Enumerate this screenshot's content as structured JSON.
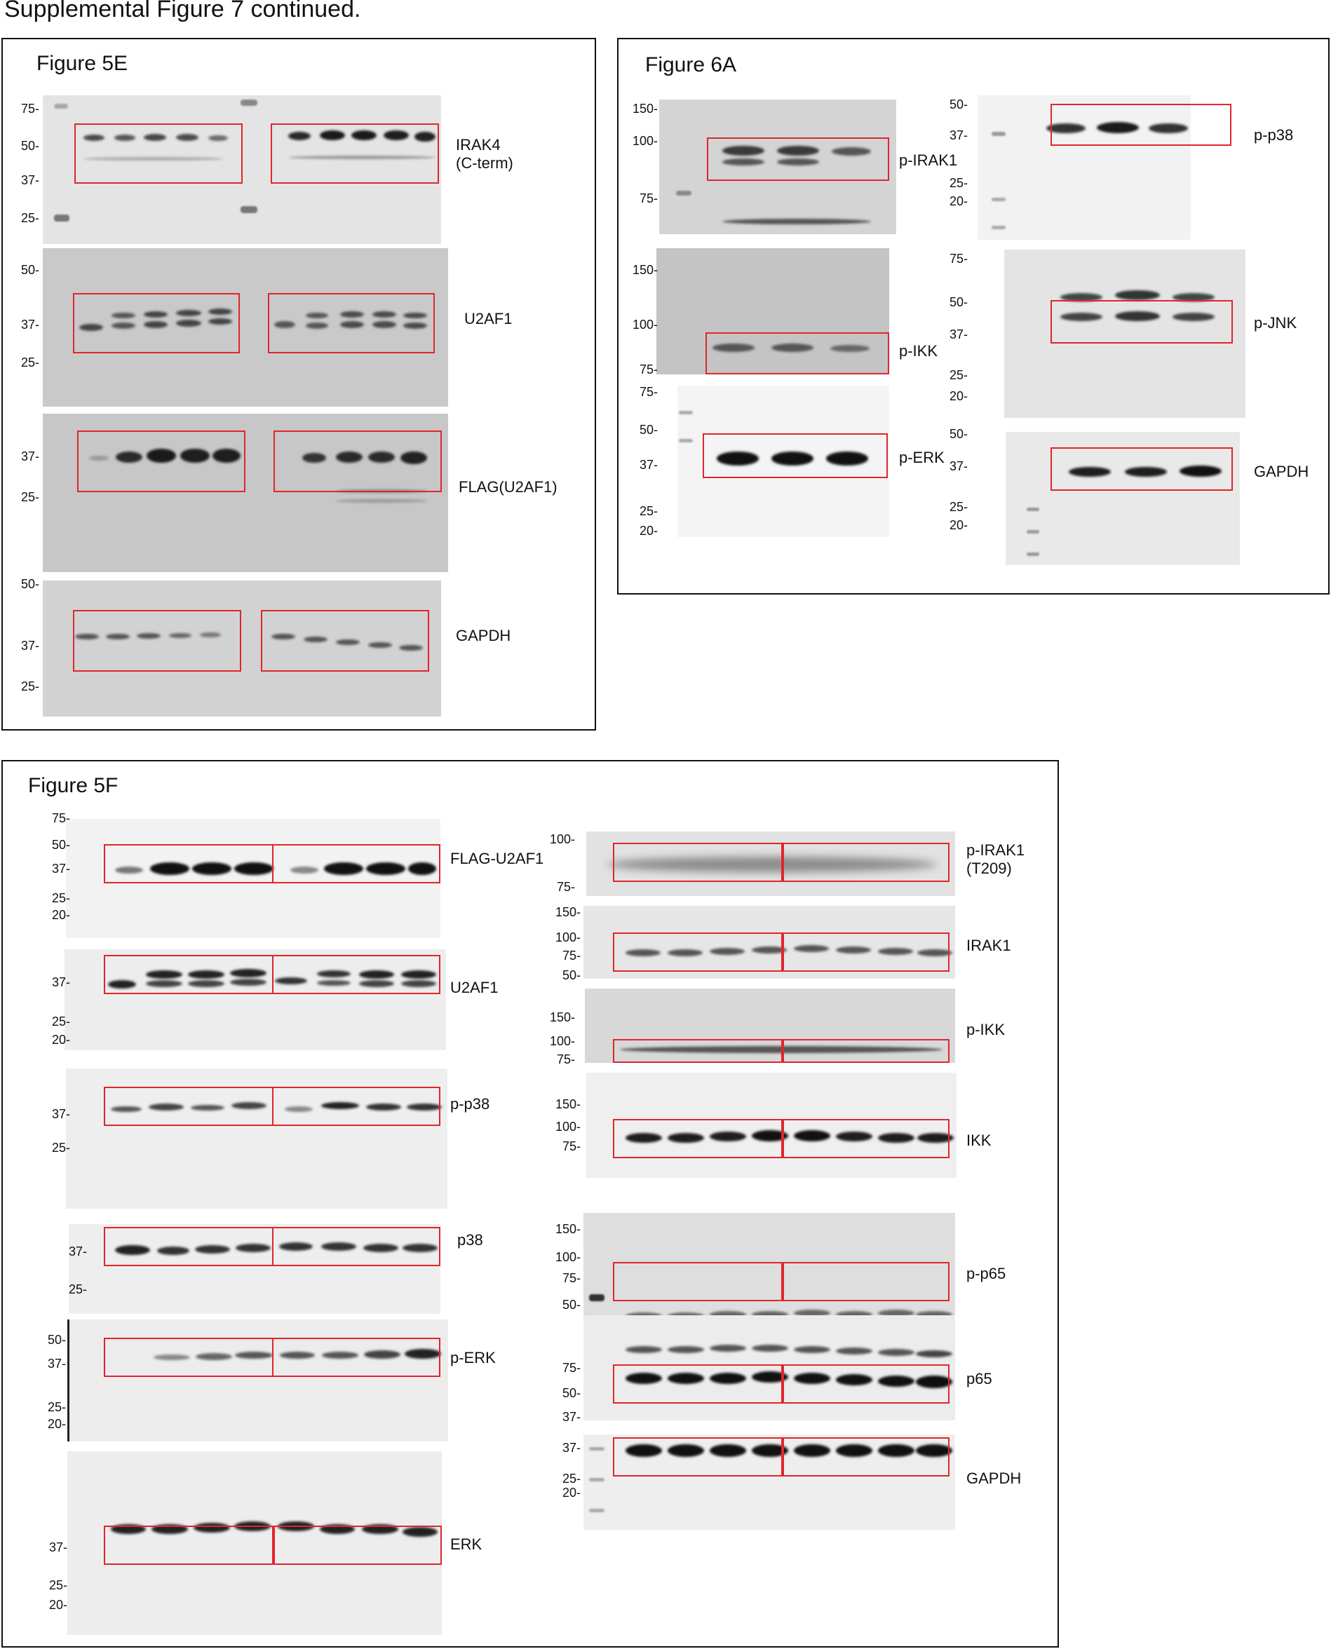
{
  "page_title": "Supplemental Figure 7 continued.",
  "panels": {
    "fig5e": {
      "title": "Figure 5E",
      "blots": [
        {
          "label": "IRAK4\n(C-term)",
          "markers": [
            "75-",
            "50-",
            "37-",
            "25-"
          ]
        },
        {
          "label": "U2AF1",
          "markers": [
            "50-",
            "37-",
            "25-"
          ]
        },
        {
          "label": "FLAG(U2AF1)",
          "markers": [
            "37-",
            "25-"
          ]
        },
        {
          "label": "GAPDH",
          "markers": [
            "50-",
            "37-",
            "25-"
          ]
        }
      ]
    },
    "fig6a": {
      "title": "Figure 6A",
      "blots": [
        {
          "label": "p-IRAK1",
          "markers": [
            "150-",
            "100-",
            "75-"
          ]
        },
        {
          "label": "p-IKK",
          "markers": [
            "150-",
            "100-",
            "75-"
          ]
        },
        {
          "label": "p-ERK",
          "markers": [
            "75-",
            "50-",
            "37-",
            "25-",
            "20-"
          ]
        },
        {
          "label": "p-p38",
          "markers": [
            "50-",
            "37-",
            "25-",
            "20-"
          ]
        },
        {
          "label": "p-JNK",
          "markers": [
            "75-",
            "50-",
            "37-",
            "25-",
            "20-"
          ]
        },
        {
          "label": "GAPDH",
          "markers": [
            "50-",
            "37-",
            "25-",
            "20-"
          ]
        }
      ]
    },
    "fig5f": {
      "title": "Figure 5F",
      "left_blots": [
        {
          "label": "FLAG-U2AF1",
          "markers": [
            "75-",
            "50-",
            "37-",
            "25-",
            "20-"
          ]
        },
        {
          "label": "U2AF1",
          "markers": [
            "37-",
            "25-",
            "20-"
          ]
        },
        {
          "label": "p-p38",
          "markers": [
            "37-",
            "25-"
          ]
        },
        {
          "label": "p38",
          "markers": [
            "37-",
            "25-"
          ]
        },
        {
          "label": "p-ERK",
          "markers": [
            "50-",
            "37-",
            "25-",
            "20-"
          ]
        },
        {
          "label": "ERK",
          "markers": [
            "37-",
            "25-",
            "20-"
          ]
        }
      ],
      "right_blots": [
        {
          "label": "p-IRAK1\n(T209)",
          "markers": [
            "100-",
            "75-"
          ]
        },
        {
          "label": "IRAK1",
          "markers": [
            "150-",
            "100-",
            "75-",
            "50-"
          ]
        },
        {
          "label": "p-IKK",
          "markers": [
            "150-",
            "100-",
            "75-"
          ]
        },
        {
          "label": "IKK",
          "markers": [
            "150-",
            "100-",
            "75-"
          ]
        },
        {
          "label": "p-p65",
          "markers": [
            "150-",
            "100-",
            "75-",
            "50-"
          ]
        },
        {
          "label": "p65",
          "markers": [
            "75-",
            "50-",
            "37-"
          ]
        },
        {
          "label": "GAPDH",
          "markers": [
            "37-",
            "25-",
            "20-"
          ]
        }
      ]
    }
  },
  "colors": {
    "roi_box": "#e0262b",
    "panel_border": "#111111"
  }
}
